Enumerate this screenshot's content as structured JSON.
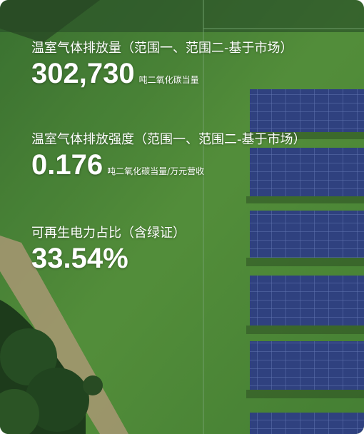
{
  "stats": [
    {
      "label": "温室气体排放量（范围一、范围二-基于市场）",
      "value": "302,730",
      "unit": "吨二氧化碳当量"
    },
    {
      "label": "温室气体排放强度（范围一、范围二-基于市场）",
      "value": "0.176",
      "unit": "吨二氧化碳当量/万元营收"
    },
    {
      "label": "可再生电力占比（含绿证）",
      "value": "33.54%"
    }
  ]
}
